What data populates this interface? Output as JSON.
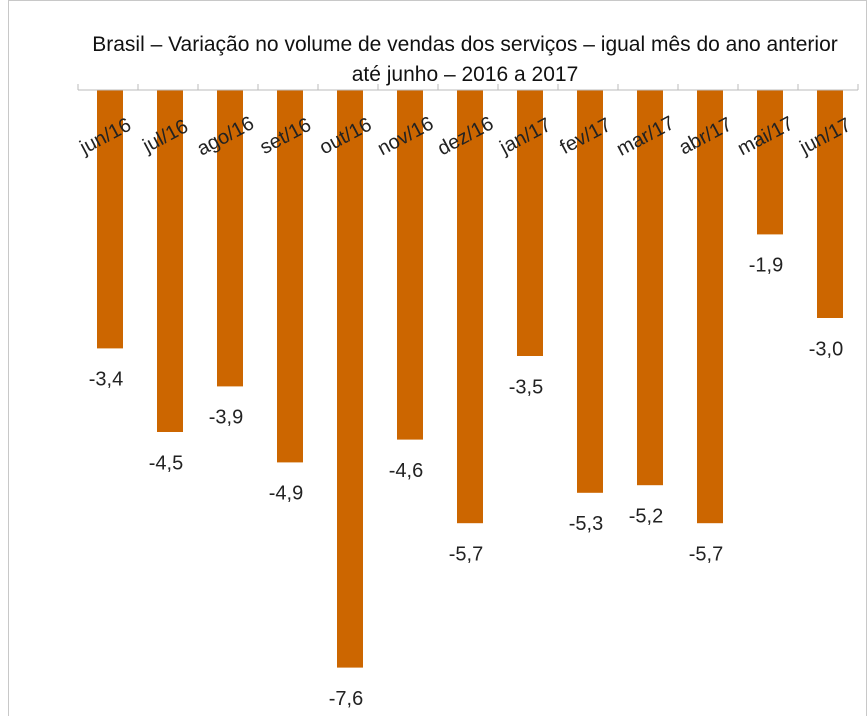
{
  "chart_data": {
    "type": "bar",
    "title": "Brasil – Variação no volume de vendas dos serviços – igual mês do ano anterior até junho – 2016 a 2017",
    "categories": [
      "jun/16",
      "jul/16",
      "ago/16",
      "set/16",
      "out/16",
      "nov/16",
      "dez/16",
      "jan/17",
      "fev/17",
      "mar/17",
      "abr/17",
      "mai/17",
      "jun/17"
    ],
    "values": [
      -3.4,
      -4.5,
      -3.9,
      -4.9,
      -7.6,
      -4.6,
      -5.7,
      -3.5,
      -5.3,
      -5.2,
      -5.7,
      -1.9,
      -3.0
    ],
    "value_labels": [
      "-3,4",
      "-4,5",
      "-3,9",
      "-4,9",
      "-7,6",
      "-4,6",
      "-5,7",
      "-3,5",
      "-5,3",
      "-5,2",
      "-5,7",
      "-1,9",
      "-3,0"
    ],
    "color": "#cc6600",
    "ylim": [
      -8.2,
      0
    ]
  }
}
